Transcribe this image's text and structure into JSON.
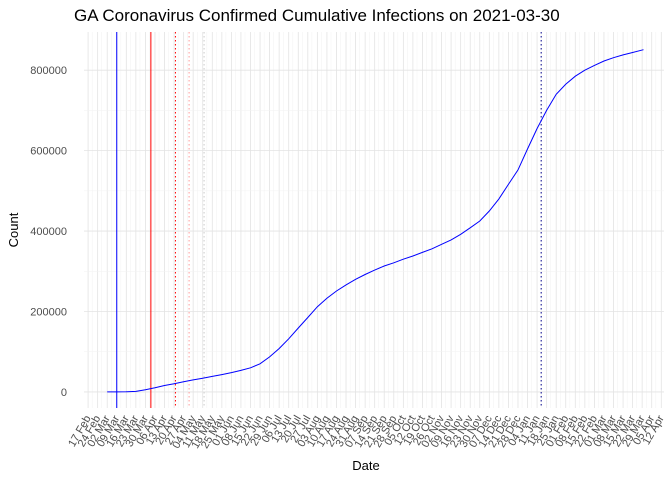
{
  "chart_data": {
    "type": "line",
    "title": "GA Coronavirus Confirmed Cumulative Infections on 2021-03-30",
    "xlabel": "Date",
    "ylabel": "Count",
    "xlim": [
      "2020-02-14",
      "2021-04-14"
    ],
    "ylim": [
      -40000,
      895000
    ],
    "grid": true,
    "yticks": [
      0,
      200000,
      400000,
      600000,
      800000
    ],
    "ytick_labels": [
      "0",
      "200000",
      "400000",
      "600000",
      "800000"
    ],
    "xtick_dates": [
      "2020-02-17",
      "2020-02-24",
      "2020-03-02",
      "2020-03-09",
      "2020-03-16",
      "2020-03-23",
      "2020-03-30",
      "2020-04-06",
      "2020-04-13",
      "2020-04-20",
      "2020-04-27",
      "2020-05-04",
      "2020-05-11",
      "2020-05-18",
      "2020-05-25",
      "2020-06-01",
      "2020-06-08",
      "2020-06-15",
      "2020-06-22",
      "2020-06-29",
      "2020-07-06",
      "2020-07-13",
      "2020-07-20",
      "2020-07-27",
      "2020-08-03",
      "2020-08-10",
      "2020-08-17",
      "2020-08-24",
      "2020-08-31",
      "2020-09-07",
      "2020-09-14",
      "2020-09-21",
      "2020-09-28",
      "2020-10-05",
      "2020-10-12",
      "2020-10-19",
      "2020-10-26",
      "2020-11-02",
      "2020-11-09",
      "2020-11-16",
      "2020-11-23",
      "2020-11-30",
      "2020-12-07",
      "2020-12-14",
      "2020-12-21",
      "2020-12-28",
      "2021-01-04",
      "2021-01-11",
      "2021-01-18",
      "2021-01-25",
      "2021-02-01",
      "2021-02-08",
      "2021-02-15",
      "2021-02-22",
      "2021-03-01",
      "2021-03-08",
      "2021-03-15",
      "2021-03-22",
      "2021-03-29",
      "2021-04-05",
      "2021-04-12"
    ],
    "xtick_labels": [
      "17 Feb",
      "24 Feb",
      "02 Mar",
      "09 Mar",
      "16 Mar",
      "23 Mar",
      "30 Mar",
      "06 Apr",
      "13 Apr",
      "20 Apr",
      "27 Apr",
      "04 May",
      "11 May",
      "18 May",
      "25 May",
      "01 Jun",
      "08 Jun",
      "15 Jun",
      "22 Jun",
      "29 Jun",
      "06 Jul",
      "13 Jul",
      "20 Jul",
      "27 Jul",
      "03 Aug",
      "10 Aug",
      "17 Aug",
      "24 Aug",
      "31 Aug",
      "07 Sep",
      "14 Sep",
      "21 Sep",
      "28 Sep",
      "05 Oct",
      "12 Oct",
      "19 Oct",
      "26 Oct",
      "02 Nov",
      "09 Nov",
      "16 Nov",
      "23 Nov",
      "30 Nov",
      "07 Dec",
      "14 Dec",
      "21 Dec",
      "28 Dec",
      "04 Jan",
      "11 Jan",
      "18 Jan",
      "25 Jan",
      "01 Feb",
      "08 Feb",
      "15 Feb",
      "22 Feb",
      "01 Mar",
      "08 Mar",
      "15 Mar",
      "22 Mar",
      "29 Mar",
      "05 Apr",
      "12 Apr"
    ],
    "series": [
      {
        "color": "#0000ff",
        "x": [
          "2020-03-02",
          "2020-03-09",
          "2020-03-16",
          "2020-03-23",
          "2020-03-30",
          "2020-04-06",
          "2020-04-13",
          "2020-04-20",
          "2020-04-27",
          "2020-05-04",
          "2020-05-11",
          "2020-05-18",
          "2020-05-25",
          "2020-06-01",
          "2020-06-08",
          "2020-06-15",
          "2020-06-22",
          "2020-06-29",
          "2020-07-06",
          "2020-07-13",
          "2020-07-20",
          "2020-07-27",
          "2020-08-03",
          "2020-08-10",
          "2020-08-17",
          "2020-08-24",
          "2020-08-31",
          "2020-09-07",
          "2020-09-14",
          "2020-09-21",
          "2020-09-28",
          "2020-10-05",
          "2020-10-12",
          "2020-10-19",
          "2020-10-26",
          "2020-11-02",
          "2020-11-09",
          "2020-11-16",
          "2020-11-23",
          "2020-11-30",
          "2020-12-07",
          "2020-12-14",
          "2020-12-21",
          "2020-12-28",
          "2021-01-04",
          "2021-01-11",
          "2021-01-18",
          "2021-01-25",
          "2021-02-01",
          "2021-02-08",
          "2021-02-15",
          "2021-02-22",
          "2021-03-01",
          "2021-03-08",
          "2021-03-15",
          "2021-03-22",
          "2021-03-30"
        ],
        "y": [
          2,
          60,
          350,
          1200,
          5500,
          10500,
          16000,
          20500,
          25500,
          30000,
          34000,
          38500,
          43000,
          48000,
          53500,
          60000,
          70000,
          87000,
          108000,
          132000,
          159000,
          185000,
          212000,
          233000,
          251000,
          266000,
          280000,
          292000,
          303000,
          313000,
          321000,
          330000,
          338000,
          347000,
          356000,
          367000,
          378000,
          392000,
          408000,
          425000,
          450000,
          480000,
          516000,
          552000,
          604000,
          655000,
          700000,
          740000,
          765000,
          785000,
          800000,
          812000,
          823000,
          831000,
          838000,
          844000,
          851000
        ]
      }
    ],
    "vertical_lines": [
      {
        "date": "2020-03-09",
        "color": "#0000ff",
        "style": "solid"
      },
      {
        "date": "2020-04-03",
        "color": "#ff0000",
        "style": "solid"
      },
      {
        "date": "2020-04-21",
        "color": "#ff0000",
        "style": "dotted"
      },
      {
        "date": "2020-05-01",
        "color": "#ff9999",
        "style": "dotted"
      },
      {
        "date": "2020-05-12",
        "color": "#cccccc",
        "style": "dotted"
      },
      {
        "date": "2021-01-14",
        "color": "#00008b",
        "style": "dotted"
      }
    ]
  }
}
